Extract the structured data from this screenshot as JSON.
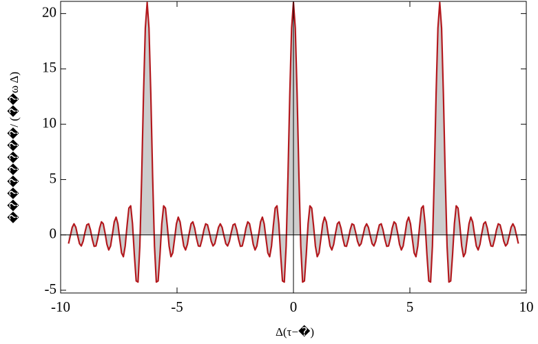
{
  "chart_data": {
    "type": "line",
    "xlabel": "Δ(τ−�)",
    "ylabel": "��������/ (��ω Δ)",
    "xlim": [
      -10,
      10
    ],
    "ylim": [
      -5.25,
      21.1
    ],
    "xticks": [
      -10,
      -5,
      0,
      5,
      10
    ],
    "yticks": [
      -5,
      0,
      5,
      10,
      15,
      20
    ],
    "fill_to_axis": true,
    "fill_color": "#c4c4c4",
    "x": [
      -9.66,
      -9.582,
      -9.503,
      -9.425,
      -9.346,
      -9.268,
      -9.189,
      -9.111,
      -9.032,
      -8.954,
      -8.875,
      -8.796,
      -8.718,
      -8.639,
      -8.561,
      -8.482,
      -8.404,
      -8.325,
      -8.247,
      -8.168,
      -8.09,
      -8.011,
      -7.933,
      -7.854,
      -7.775,
      -7.697,
      -7.618,
      -7.54,
      -7.461,
      -7.383,
      -7.304,
      -7.226,
      -7.147,
      -7.069,
      -6.99,
      -6.912,
      -6.833,
      -6.754,
      -6.676,
      -6.597,
      -6.519,
      -6.44,
      -6.362,
      -6.283,
      -6.205,
      -6.126,
      -6.048,
      -5.969,
      -5.89,
      -5.812,
      -5.733,
      -5.655,
      -5.576,
      -5.498,
      -5.419,
      -5.341,
      -5.262,
      -5.184,
      -5.105,
      -5.027,
      -4.948,
      -4.869,
      -4.791,
      -4.712,
      -4.634,
      -4.555,
      -4.477,
      -4.398,
      -4.32,
      -4.241,
      -4.163,
      -4.084,
      -4.006,
      -3.927,
      -3.848,
      -3.77,
      -3.691,
      -3.613,
      -3.534,
      -3.456,
      -3.377,
      -3.299,
      -3.22,
      -3.142,
      -3.063,
      -2.985,
      -2.906,
      -2.827,
      -2.749,
      -2.67,
      -2.592,
      -2.513,
      -2.435,
      -2.356,
      -2.278,
      -2.199,
      -2.121,
      -2.042,
      -1.963,
      -1.885,
      -1.806,
      -1.728,
      -1.649,
      -1.571,
      -1.492,
      -1.414,
      -1.335,
      -1.257,
      -1.178,
      -1.1,
      -1.021,
      -0.942,
      -0.864,
      -0.785,
      -0.707,
      -0.628,
      -0.55,
      -0.471,
      -0.393,
      -0.314,
      -0.236,
      -0.157,
      -0.079,
      0,
      0.079,
      0.157,
      0.236,
      0.314,
      0.393,
      0.471,
      0.55,
      0.628,
      0.707,
      0.785,
      0.864,
      0.942,
      1.021,
      1.1,
      1.178,
      1.257,
      1.335,
      1.414,
      1.492,
      1.571,
      1.649,
      1.728,
      1.806,
      1.885,
      1.963,
      2.042,
      2.121,
      2.199,
      2.278,
      2.356,
      2.435,
      2.513,
      2.592,
      2.67,
      2.749,
      2.827,
      2.906,
      2.985,
      3.063,
      3.142,
      3.22,
      3.299,
      3.377,
      3.456,
      3.534,
      3.613,
      3.691,
      3.77,
      3.848,
      3.927,
      4.006,
      4.084,
      4.163,
      4.241,
      4.32,
      4.398,
      4.477,
      4.555,
      4.634,
      4.712,
      4.791,
      4.869,
      4.948,
      5.027,
      5.105,
      5.184,
      5.262,
      5.341,
      5.419,
      5.498,
      5.576,
      5.655,
      5.733,
      5.812,
      5.89,
      5.969,
      6.048,
      6.126,
      6.205,
      6.283,
      6.362,
      6.44,
      6.519,
      6.597,
      6.676,
      6.754,
      6.833,
      6.912,
      6.99,
      7.069,
      7.147,
      7.226,
      7.304,
      7.383,
      7.461,
      7.54,
      7.618,
      7.697,
      7.775,
      7.854,
      7.933,
      8.011,
      8.09,
      8.168,
      8.247,
      8.325,
      8.404,
      8.482,
      8.561,
      8.639,
      8.718,
      8.796,
      8.875,
      8.954,
      9.032,
      9.111,
      9.189,
      9.268,
      9.346,
      9.425,
      9.503,
      9.582,
      9.66
    ],
    "series": [
      {
        "color": "#b3181d",
        "values": [
          -0.791,
          -0.079,
          0.679,
          1,
          0.679,
          -0.079,
          -0.791,
          -1,
          -0.566,
          0.24,
          0.907,
          1,
          0.446,
          -0.414,
          -1.033,
          -1,
          -0.311,
          0.613,
          1.18,
          1,
          0.15,
          -0.854,
          -1.361,
          -1,
          0.058,
          1.171,
          1.604,
          1,
          -0.351,
          -1.632,
          -1.97,
          -1,
          0.827,
          2.414,
          2.624,
          1,
          -1.8,
          -4.165,
          -4.262,
          -1,
          5.267,
          12.706,
          18.7,
          21,
          18.7,
          12.706,
          5.267,
          -1,
          -4.262,
          -4.165,
          -1.8,
          1,
          2.624,
          2.414,
          0.827,
          -1,
          -1.97,
          -1.632,
          -0.351,
          1,
          1.604,
          1.171,
          0.058,
          -1,
          -1.361,
          -0.854,
          0.15,
          1,
          1.18,
          0.613,
          -0.311,
          -1,
          -1.033,
          -0.414,
          0.446,
          1,
          0.907,
          0.24,
          -0.566,
          -1,
          -0.791,
          -0.079,
          0.679,
          1,
          0.679,
          -0.079,
          -0.791,
          -1,
          -0.566,
          0.24,
          0.907,
          1,
          0.446,
          -0.414,
          -1.033,
          -1,
          -0.311,
          0.613,
          1.18,
          1,
          0.15,
          -0.854,
          -1.361,
          -1,
          0.058,
          1.171,
          1.604,
          1,
          -0.351,
          -1.632,
          -1.97,
          -1,
          0.827,
          2.414,
          2.624,
          1,
          -1.8,
          -4.165,
          -4.262,
          -1,
          5.267,
          12.706,
          18.7,
          21,
          18.7,
          12.706,
          5.267,
          -1,
          -4.262,
          -4.165,
          -1.8,
          1,
          2.624,
          2.414,
          0.827,
          -1,
          -1.97,
          -1.632,
          -0.351,
          1,
          1.604,
          1.171,
          0.058,
          -1,
          -1.361,
          -0.854,
          0.15,
          1,
          1.18,
          0.613,
          -0.311,
          -1,
          -1.033,
          -0.414,
          0.446,
          1,
          0.907,
          0.24,
          -0.566,
          -1,
          -0.791,
          -0.079,
          0.679,
          1,
          0.679,
          -0.079,
          -0.791,
          -1,
          -0.566,
          0.24,
          0.907,
          1,
          0.446,
          -0.414,
          -1.033,
          -1,
          -0.311,
          0.613,
          1.18,
          1,
          0.15,
          -0.854,
          -1.361,
          -1,
          0.058,
          1.171,
          1.604,
          1,
          -0.351,
          -1.632,
          -1.97,
          -1,
          0.827,
          2.414,
          2.624,
          1,
          -1.8,
          -4.165,
          -4.262,
          -1,
          5.267,
          12.706,
          18.7,
          21,
          18.7,
          12.706,
          5.267,
          -1,
          -4.262,
          -4.165,
          -1.8,
          1,
          2.624,
          2.414,
          0.827,
          -1,
          -1.97,
          -1.632,
          -0.351,
          1,
          1.604,
          1.171,
          0.058,
          -1,
          -1.361,
          -0.854,
          0.15,
          1,
          1.18,
          0.613,
          -0.311,
          -1,
          -1.033,
          -0.414,
          0.446,
          1,
          0.907,
          0.24,
          -0.566,
          -1,
          -0.791,
          -0.079,
          0.679,
          1,
          0.679,
          -0.079,
          -0.791
        ]
      }
    ]
  }
}
